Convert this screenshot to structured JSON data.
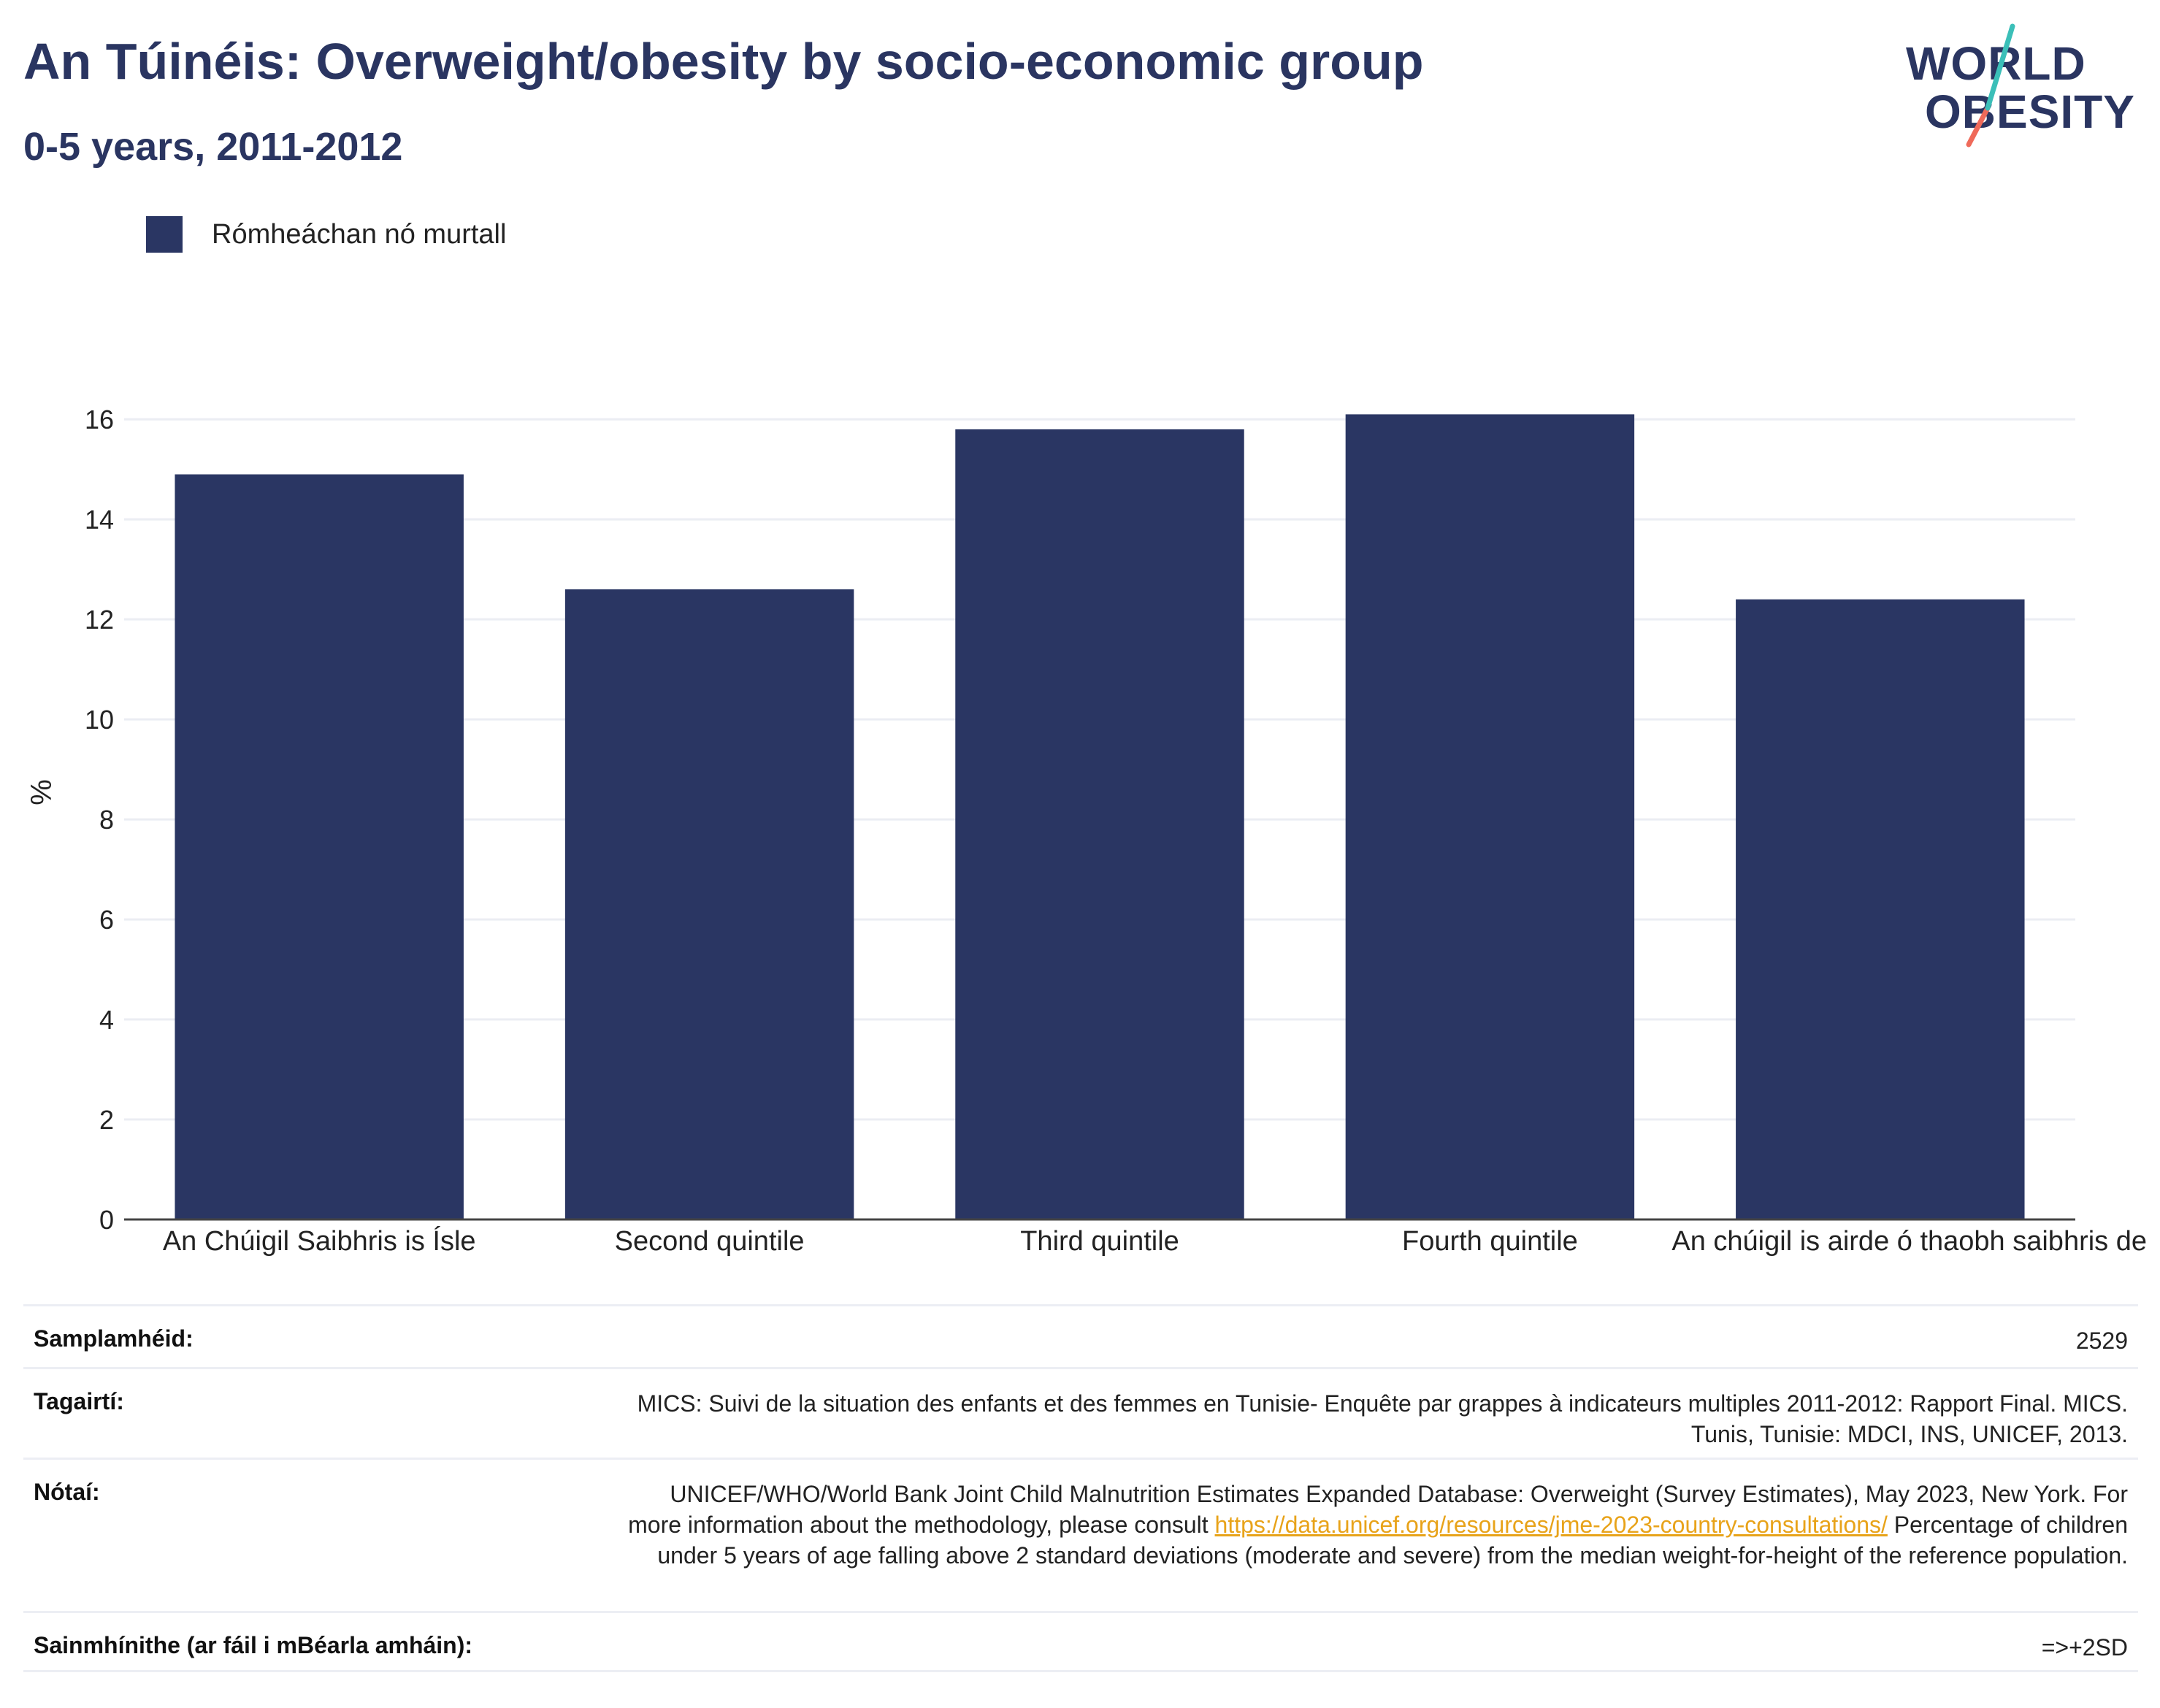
{
  "header": {
    "title": "An Túinéis: Overweight/obesity by socio-economic group",
    "subtitle": "0-5 years, 2011-2012"
  },
  "logo": {
    "line1": "WORLD",
    "line2": "OBESITY",
    "accent_teal": "#3bbfb8",
    "accent_coral": "#ef6a5a"
  },
  "legend": {
    "label": "Rómheáchan nó murtall",
    "color": "#2a3663"
  },
  "chart_data": {
    "type": "bar",
    "categories": [
      "An Chúigil Saibhris is Ísle",
      "Second quintile",
      "Third quintile",
      "Fourth quintile",
      "An chúigil is airde ó thaobh saibhris de"
    ],
    "series": [
      {
        "name": "Rómheáchan nó murtall",
        "values": [
          14.9,
          12.6,
          15.8,
          16.1,
          12.4
        ],
        "color": "#2a3663"
      }
    ],
    "ylabel": "%",
    "xlabel": "",
    "ylim": [
      0,
      16.5
    ],
    "yticks": [
      0,
      2,
      4,
      6,
      8,
      10,
      12,
      14,
      16
    ],
    "grid": true,
    "legend_position": "top-left"
  },
  "info": {
    "sample_label": "Samplamhéid:",
    "sample_value": "2529",
    "references_label": "Tagairtí:",
    "references_value": "MICS: Suivi de la situation des enfants et des femmes en Tunisie- Enquête par grappes à indicateurs multiples 2011-2012: Rapport Final. MICS. Tunis, Tunisie: MDCI, INS, UNICEF, 2013.",
    "notes_label": "Nótaí:",
    "notes_text_before": "UNICEF/WHO/World Bank Joint Child Malnutrition Estimates Expanded Database: Overweight (Survey Estimates), May 2023, New York. For more information about the methodology, please consult ",
    "notes_link": "https://data.unicef.org/resources/jme-2023-country-consultations/",
    "notes_text_after": " Percentage of children under 5 years of age falling above 2 standard deviations (moderate and severe) from the median weight-for-height of the reference population.",
    "definitions_label": "Sainmhínithe (ar fáil i mBéarla amháin):",
    "definitions_value": "=>+2SD"
  }
}
